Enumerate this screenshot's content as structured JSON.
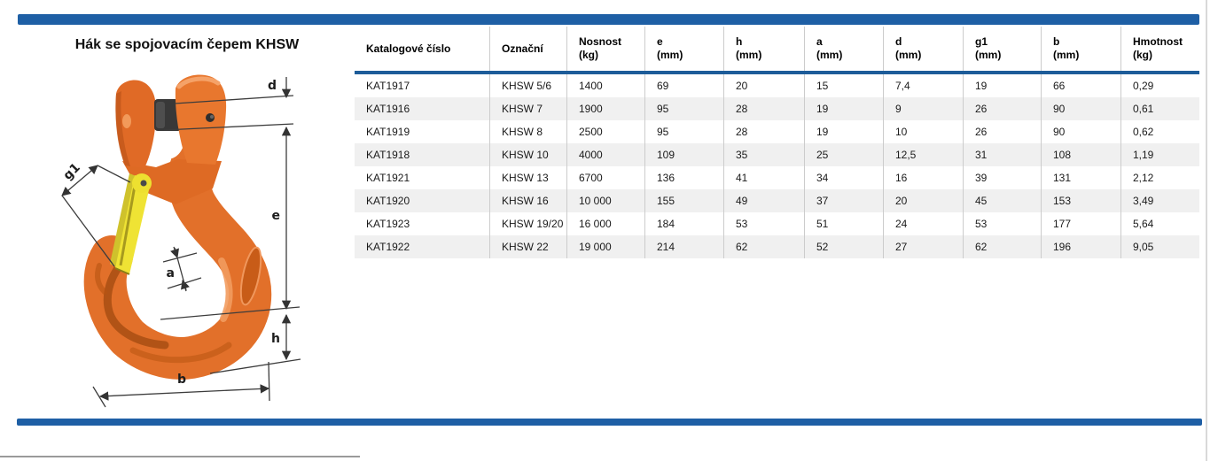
{
  "page": {
    "title": "Hák se spojovacím čepem KHSW",
    "accent_color": "#1e5fa5",
    "hook_color": "#e8772e",
    "latch_color": "#efe334"
  },
  "diagram": {
    "labels": {
      "d": "d",
      "g1": "g1",
      "e": "e",
      "a": "a",
      "h": "h",
      "b": "b"
    }
  },
  "table": {
    "columns": [
      {
        "key": "katalog",
        "line1": "Katalogové číslo",
        "line2": ""
      },
      {
        "key": "oznacni",
        "line1": "Označní",
        "line2": ""
      },
      {
        "key": "nosnost",
        "line1": "Nosnost",
        "line2": "(kg)"
      },
      {
        "key": "e",
        "line1": "e",
        "line2": "(mm)"
      },
      {
        "key": "h",
        "line1": "h",
        "line2": "(mm)"
      },
      {
        "key": "a",
        "line1": "a",
        "line2": "(mm)"
      },
      {
        "key": "d",
        "line1": "d",
        "line2": "(mm)"
      },
      {
        "key": "g1",
        "line1": "g1",
        "line2": "(mm)"
      },
      {
        "key": "b",
        "line1": "b",
        "line2": "(mm)"
      },
      {
        "key": "hmotnost",
        "line1": "Hmotnost",
        "line2": "(kg)"
      }
    ],
    "rows": [
      [
        "KAT1917",
        "KHSW 5/6",
        "1400",
        "69",
        "20",
        "15",
        "7,4",
        "19",
        "66",
        "0,29"
      ],
      [
        "KAT1916",
        "KHSW 7",
        "1900",
        "95",
        "28",
        "19",
        "9",
        "26",
        "90",
        "0,61"
      ],
      [
        "KAT1919",
        "KHSW 8",
        "2500",
        "95",
        "28",
        "19",
        "10",
        "26",
        "90",
        "0,62"
      ],
      [
        "KAT1918",
        "KHSW 10",
        "4000",
        "109",
        "35",
        "25",
        "12,5",
        "31",
        "108",
        "1,19"
      ],
      [
        "KAT1921",
        "KHSW 13",
        "6700",
        "136",
        "41",
        "34",
        "16",
        "39",
        "131",
        "2,12"
      ],
      [
        "KAT1920",
        "KHSW 16",
        "10 000",
        "155",
        "49",
        "37",
        "20",
        "45",
        "153",
        "3,49"
      ],
      [
        "KAT1923",
        "KHSW 19/20",
        "16 000",
        "184",
        "53",
        "51",
        "24",
        "53",
        "177",
        "5,64"
      ],
      [
        "KAT1922",
        "KHSW 22",
        "19 000",
        "214",
        "62",
        "52",
        "27",
        "62",
        "196",
        "9,05"
      ]
    ]
  }
}
